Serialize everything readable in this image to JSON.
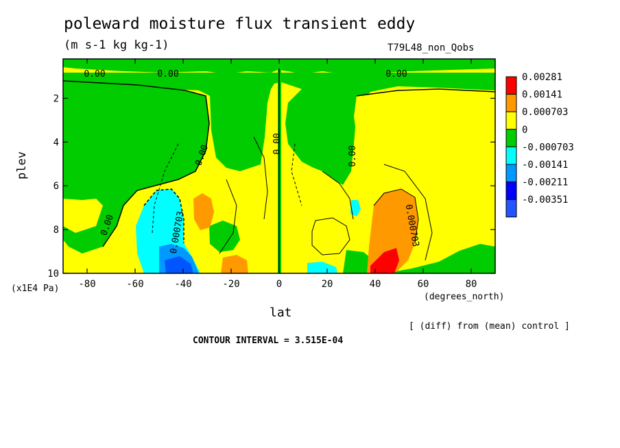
{
  "chart_data": {
    "type": "heatmap",
    "title": "poleward moisture flux transient eddy",
    "units": "(m s-1 kg kg-1)",
    "run_id": "T79L48_non_Qobs",
    "note": "[ (diff) from (mean) control ]",
    "contour_interval": "CONTOUR INTERVAL = 3.515E-04",
    "xlabel": "lat",
    "xlabel_sub": "(degrees_north)",
    "ylabel": "plev",
    "y_unit": "(x1E4 Pa)",
    "x_ticks": [
      "-80",
      "-60",
      "-40",
      "-20",
      "0",
      "20",
      "40",
      "60",
      "80"
    ],
    "x_tick_values": [
      -80,
      -60,
      -40,
      -20,
      0,
      20,
      40,
      60,
      80
    ],
    "y_ticks": [
      "2",
      "4",
      "6",
      "8",
      "10"
    ],
    "y_tick_values": [
      2,
      4,
      6,
      8,
      10
    ],
    "xlim": [
      -90,
      90
    ],
    "ylim": [
      10,
      0.2
    ],
    "contour_labels": [
      "0.00",
      "0.00",
      "0.00",
      "0.00",
      "0.00",
      "0.00",
      "0.00",
      "0.000703",
      "0.000703"
    ],
    "colorbar": {
      "labels": [
        "0.00281",
        "0.00141",
        "0.000703",
        "0",
        "-0.000703",
        "-0.00141",
        "-0.00211",
        "-0.00351"
      ],
      "colors": [
        "#ff0000",
        "#ff9900",
        "#ffff00",
        "#00cc00",
        "#00ffff",
        "#0099ff",
        "#0000ff",
        "#2255ff"
      ]
    }
  }
}
